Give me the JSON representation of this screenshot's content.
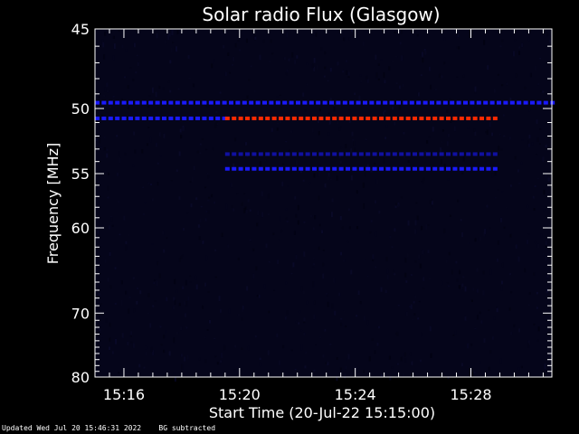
{
  "chart_data": {
    "type": "heatmap",
    "title": "Solar radio Flux (Glasgow)",
    "xlabel": "Start Time (20-Jul-22 15:15:00)",
    "ylabel": "Frequency [MHz]",
    "x_unit": "minutes after 15:00",
    "xlim": [
      15.0,
      30.8
    ],
    "ylim_reciprocal": [
      45,
      80
    ],
    "y_scale": "reciprocal",
    "x_ticks": [
      {
        "value": 16,
        "label": "15:16"
      },
      {
        "value": 20,
        "label": "15:20"
      },
      {
        "value": 24,
        "label": "15:24"
      },
      {
        "value": 28,
        "label": "15:28"
      }
    ],
    "y_ticks": [
      {
        "value": 45,
        "label": "45"
      },
      {
        "value": 50,
        "label": "50"
      },
      {
        "value": 55,
        "label": "55"
      },
      {
        "value": 60,
        "label": "60"
      },
      {
        "value": 70,
        "label": "70"
      },
      {
        "value": 80,
        "label": "80"
      }
    ],
    "features": [
      {
        "name": "persistent-line",
        "frequency_mhz": 49.6,
        "x_start": 15.0,
        "x_end": 30.8,
        "color": "#1a1aff"
      },
      {
        "name": "early-line",
        "frequency_mhz": 50.7,
        "x_start": 15.0,
        "x_end": 19.4,
        "color": "#1a1aff"
      },
      {
        "name": "strong-line",
        "frequency_mhz": 50.7,
        "x_start": 19.5,
        "x_end": 28.8,
        "color": "#ff2a00"
      },
      {
        "name": "faint-line",
        "frequency_mhz": 53.4,
        "x_start": 19.5,
        "x_end": 28.8,
        "color": "#1010a0"
      },
      {
        "name": "mid-line",
        "frequency_mhz": 54.6,
        "x_start": 19.5,
        "x_end": 28.8,
        "color": "#1a1aff"
      }
    ],
    "background_color": "#05051a",
    "grid": false
  },
  "footer": {
    "updated": "Updated Wed Jul 20 15:46:31 2022",
    "note": "BG subtracted"
  }
}
